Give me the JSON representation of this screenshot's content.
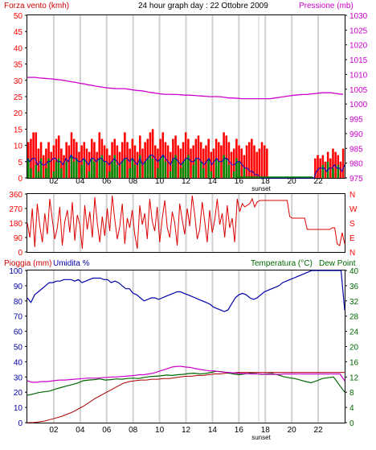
{
  "header": {
    "left_label": "Forza vento (kmh)",
    "title": "24 hour graph day : 22 Ottobre 2009",
    "right_label": "Pressione (mb)"
  },
  "bottom_header": {
    "rain_label": "Pioggia (mm)",
    "humidity_label": "Umidita %",
    "temp_label": "Temperatura (°C)",
    "dew_label": "Dew Point"
  },
  "colors": {
    "wind_bar": "#ff0000",
    "gust_line": "#ee0000",
    "avg_wind_line": "#0000cc",
    "calm_bar": "#008800",
    "pressure_line": "#cc00cc",
    "direction_line": "#dd0000",
    "humidity_line": "#0000aa",
    "temperature_line": "#006600",
    "dewpoint_line": "#cc00cc",
    "rain_line": "#aa0000",
    "left_axis_wind": "#ff0000",
    "right_axis_pressure": "#cc00cc",
    "humidity_axis": "#0000aa",
    "temp_axis": "#006600",
    "frame": "#000000"
  },
  "x_axis": {
    "hour_labels": [
      "02",
      "04",
      "06",
      "08",
      "10",
      "12",
      "14",
      "16",
      "18",
      "20",
      "22"
    ],
    "sunset_label": "sunset"
  },
  "chart_data": [
    {
      "type": "bar",
      "name": "wind",
      "y_left_ticks": [
        "0",
        "5",
        "10",
        "15",
        "20",
        "25",
        "30",
        "35",
        "40",
        "45",
        "50"
      ],
      "y_left_range": [
        0,
        50
      ],
      "y_right_ticks": [
        "975",
        "980",
        "985",
        "990",
        "995",
        "1000",
        "1005",
        "1010",
        "1015",
        "1020",
        "1025",
        "1030"
      ],
      "y_right_range": [
        975,
        1030
      ],
      "wind_speed_values": [
        11,
        12,
        14,
        14,
        9,
        11,
        7,
        9,
        11,
        8,
        10,
        12,
        13,
        9,
        7,
        11,
        10,
        14,
        12,
        11,
        8,
        10,
        11,
        9,
        8,
        12,
        11,
        8,
        14,
        12,
        10,
        9,
        7,
        11,
        12,
        10,
        8,
        11,
        14,
        11,
        9,
        12,
        10,
        8,
        13,
        9,
        11,
        12,
        14,
        15,
        10,
        9,
        12,
        14,
        11,
        10,
        8,
        12,
        13,
        10,
        9,
        11,
        14,
        12,
        9,
        10,
        12,
        13,
        11,
        9,
        10,
        12,
        8,
        9,
        12,
        11,
        10,
        14,
        13,
        11,
        8,
        9,
        12,
        10,
        9,
        7,
        10,
        11,
        12,
        10,
        8,
        9,
        11,
        10,
        9,
        0,
        0,
        0,
        0,
        0,
        0,
        0,
        0,
        0,
        0,
        0,
        0,
        0,
        0,
        0,
        0,
        0,
        0,
        6,
        7,
        6,
        7,
        5,
        8,
        6,
        9,
        8,
        7,
        5,
        9
      ],
      "avg_wind_values": [
        6,
        5,
        6,
        6,
        4,
        5,
        4,
        4,
        5,
        5,
        6,
        6,
        5,
        5,
        4,
        6,
        5,
        7,
        6,
        6,
        5,
        5,
        6,
        5,
        4,
        6,
        6,
        5,
        6,
        6,
        5,
        5,
        4,
        5,
        6,
        5,
        4,
        5,
        6,
        6,
        5,
        6,
        5,
        4,
        6,
        4,
        5,
        6,
        7,
        7,
        6,
        5,
        6,
        7,
        6,
        5,
        4,
        6,
        6,
        5,
        4,
        5,
        6,
        6,
        5,
        5,
        6,
        6,
        5,
        4,
        5,
        6,
        4,
        5,
        6,
        5,
        5,
        6,
        6,
        5,
        4,
        4,
        5,
        5,
        4,
        3,
        3,
        2,
        2,
        1,
        1,
        0,
        0,
        0,
        0,
        0,
        0,
        0,
        0,
        0,
        0,
        0,
        0,
        0,
        0,
        0,
        0,
        0,
        0,
        0,
        0,
        0,
        0,
        2,
        3,
        3,
        3,
        2,
        3,
        3,
        4,
        3,
        3,
        2,
        4
      ],
      "calm_values": [
        6,
        3,
        0,
        4,
        2,
        6,
        0,
        3,
        6,
        0,
        2,
        5,
        6,
        3,
        0,
        5,
        0,
        7,
        5,
        6,
        0,
        4,
        6,
        0,
        2,
        6,
        5,
        0,
        6,
        7,
        5,
        0,
        2,
        5,
        7,
        4,
        0,
        5,
        6,
        0,
        3,
        6,
        4,
        0,
        7,
        0,
        5,
        6,
        7,
        6,
        0,
        3,
        6,
        7,
        5,
        0,
        2,
        6,
        7,
        0,
        3,
        5,
        6,
        7,
        0,
        4,
        6,
        0,
        5,
        3,
        0,
        6,
        2,
        0,
        6,
        5,
        0,
        7,
        6,
        4,
        0,
        2,
        6,
        5,
        0,
        3,
        0,
        0,
        0,
        0,
        0,
        0,
        0,
        0,
        0,
        0,
        0,
        0,
        0,
        0,
        0,
        0,
        0,
        0,
        0,
        0,
        0,
        0,
        0,
        0,
        0,
        0,
        0,
        0,
        0,
        0,
        4,
        0,
        5,
        0,
        3,
        0,
        4,
        0,
        0
      ],
      "pressure_values": [
        1009,
        1009,
        1009,
        1008.8,
        1008.7,
        1008.6,
        1008.5,
        1008.3,
        1008.2,
        1008,
        1007.7,
        1007.5,
        1007.3,
        1007,
        1006.8,
        1006.5,
        1006.3,
        1006,
        1005.8,
        1005.6,
        1005.4,
        1005.3,
        1005.2,
        1005.2,
        1005.2,
        1005,
        1004.8,
        1004.6,
        1004.5,
        1004.3,
        1004,
        1003.8,
        1003.6,
        1003.4,
        1003.3,
        1003.3,
        1003.2,
        1003.2,
        1003.1,
        1003,
        1003,
        1002.9,
        1002.8,
        1002.7,
        1002.6,
        1002.5,
        1002.5,
        1002.5,
        1002.4,
        1002.2,
        1002,
        1002,
        1001.9,
        1001.8,
        1001.8,
        1001.8,
        1001.8,
        1001.8,
        1001.8,
        1001.8,
        1001.8,
        1002,
        1002.2,
        1002.4,
        1002.6,
        1002.8,
        1003,
        1003.1,
        1003.2,
        1003.2,
        1003.4,
        1003.5,
        1003.7,
        1003.8,
        1003.8,
        1003.8,
        1003.6,
        1003.4,
        1003.3
      ]
    },
    {
      "type": "line",
      "name": "wind_direction",
      "y_left_ticks": [
        "0",
        "90",
        "180",
        "270",
        "360"
      ],
      "y_range": [
        0,
        360
      ],
      "y_right_ticks": [
        "N",
        "E",
        "S",
        "W",
        "N"
      ],
      "values": [
        180,
        90,
        270,
        30,
        300,
        160,
        60,
        240,
        110,
        330,
        200,
        80,
        150,
        280,
        40,
        190,
        260,
        120,
        310,
        70,
        230,
        170,
        20,
        290,
        140,
        250,
        90,
        340,
        180,
        60,
        220,
        100,
        270,
        130,
        350,
        200,
        80,
        160,
        300,
        50,
        210,
        150,
        260,
        110,
        20,
        290,
        170,
        240,
        80,
        330,
        190,
        130,
        280,
        60,
        210,
        320,
        150,
        90,
        250,
        180,
        40,
        300,
        200,
        110,
        270,
        160,
        350,
        230,
        80,
        140,
        310,
        190,
        60,
        260,
        120,
        200,
        330,
        170,
        240,
        90,
        290,
        150,
        210,
        60,
        330,
        250,
        300,
        280,
        290,
        300,
        330,
        280,
        310,
        320,
        320,
        320,
        320,
        320,
        320,
        320,
        320,
        320,
        320,
        320,
        320,
        220,
        210,
        210,
        210,
        210,
        210,
        210,
        140,
        140,
        140,
        140,
        140,
        140,
        140,
        140,
        140,
        140,
        150,
        150,
        50,
        40,
        120,
        50
      ]
    },
    {
      "type": "line",
      "name": "humidity_temp_rain",
      "y_left_ticks": [
        "0",
        "10",
        "20",
        "30",
        "40",
        "50",
        "60",
        "70",
        "80",
        "90",
        "100"
      ],
      "y_left_range": [
        0,
        100
      ],
      "y_right_ticks": [
        "0",
        "4",
        "8",
        "12",
        "16",
        "20",
        "24",
        "28",
        "32",
        "36",
        "40"
      ],
      "y_right_range": [
        0,
        40
      ],
      "humidity_values": [
        82,
        79,
        84,
        86,
        88,
        90,
        92,
        92,
        93,
        93,
        94,
        94,
        94,
        93,
        94,
        92,
        93,
        94,
        95,
        95,
        95,
        94,
        94,
        92,
        93,
        92,
        90,
        88,
        88,
        85,
        84,
        82,
        80,
        81,
        82,
        82,
        81,
        82,
        83,
        84,
        85,
        86,
        86,
        85,
        84,
        83,
        82,
        81,
        80,
        79,
        78,
        76,
        75,
        74,
        73,
        74,
        78,
        82,
        84,
        85,
        84,
        82,
        81,
        82,
        84,
        86,
        87,
        88,
        89,
        90,
        92,
        93,
        94,
        95,
        96,
        97,
        98,
        99,
        100,
        100,
        100,
        100,
        100,
        100,
        100,
        100,
        100,
        74
      ],
      "temperature_values": [
        11,
        10.6,
        10.6,
        10.8,
        10.8,
        10.9,
        11.1,
        11.2,
        11.2,
        11.3,
        11.4,
        11.5,
        11.6,
        11.7,
        11.7,
        11.7,
        11.8,
        11.9,
        12,
        12,
        12.1,
        12.2,
        12.3,
        12.4,
        12.6,
        12.6,
        12.8,
        13,
        13.4,
        13.8,
        14.2,
        14.6,
        14.8,
        14.8,
        14.6,
        14.5,
        14.2,
        14,
        13.8,
        13.6,
        13.6,
        13.4,
        13.3,
        13.2,
        13.1,
        13,
        12.9,
        12.9,
        12.8,
        12.8,
        12.8,
        12.7,
        12.7,
        12.7,
        12.7,
        12.8,
        12.8,
        12.8,
        12.8,
        12.8,
        12.8,
        12.8,
        12.8,
        12.8,
        12.8,
        12.8,
        12.8,
        12.8,
        11
      ],
      "dewpoint_values": [
        7.2,
        7.5,
        7.9,
        8.1,
        8.3,
        8.8,
        9.2,
        9.6,
        10,
        10.4,
        11,
        11.2,
        11.3,
        11.5,
        11.2,
        11.3,
        11.5,
        11.4,
        11.6,
        11.7,
        11.6,
        11.9,
        12.1,
        12.2,
        12.3,
        12.5,
        12.4,
        12.6,
        12.7,
        12.9,
        13,
        12.8,
        12.9,
        13.2,
        13.5,
        13.4,
        13.1,
        12.8,
        12.6,
        12.8,
        13,
        12.9,
        12.7,
        12.8,
        12.9,
        12.6,
        12.1,
        11.8,
        11.6,
        11.2,
        10.8,
        10.5,
        11,
        11.6,
        11.8,
        12,
        10,
        8
      ],
      "rain_values": [
        0,
        0,
        0.5,
        1,
        2,
        3,
        4,
        5.5,
        7,
        9,
        11,
        13.5,
        16,
        18,
        20,
        22,
        24,
        26,
        27,
        27.5,
        28,
        28,
        28.5,
        28.5,
        29,
        29,
        29.5,
        30,
        30.5,
        30.5,
        31,
        31,
        31.5,
        32,
        32,
        32.5,
        32.5,
        33,
        33,
        33,
        33,
        33,
        33,
        33,
        33,
        33,
        33,
        33,
        33,
        33,
        33,
        33,
        33,
        33,
        33,
        33,
        33
      ]
    }
  ]
}
